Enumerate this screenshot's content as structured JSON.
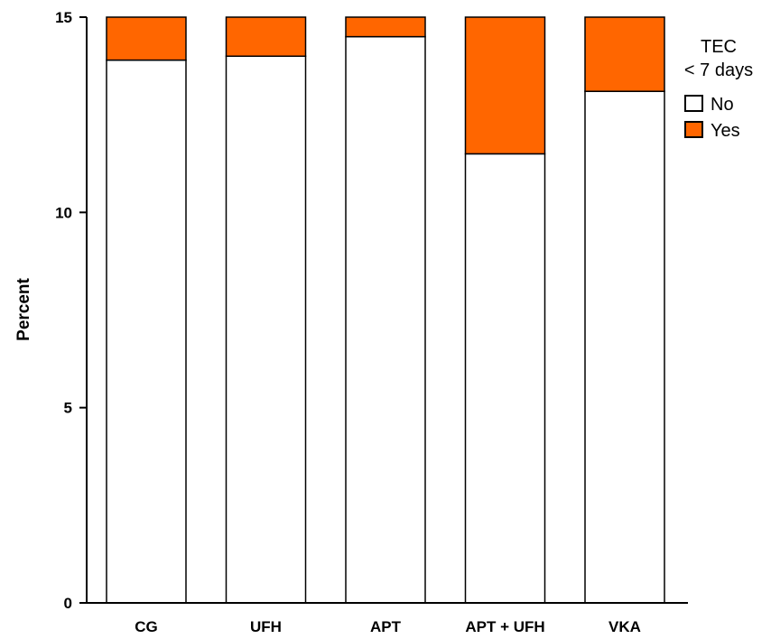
{
  "chart_data": {
    "type": "bar",
    "stacked": true,
    "categories": [
      "CG",
      "UFH",
      "APT",
      "APT + UFH",
      "VKA"
    ],
    "series": [
      {
        "name": "No",
        "color": "#ffffff",
        "values": [
          13.9,
          14.0,
          14.5,
          11.5,
          13.1
        ]
      },
      {
        "name": "Yes",
        "color": "#ff6600",
        "values": [
          1.1,
          1.0,
          0.5,
          3.5,
          1.9
        ]
      }
    ],
    "ylabel": "Percent",
    "xlabel": "",
    "ylim": [
      0,
      15
    ],
    "yticks": [
      "0",
      "5",
      "10",
      "15"
    ],
    "legend": {
      "title_line1": "TEC",
      "title_line2": "< 7 days",
      "placement": "top-right"
    },
    "grid": false
  }
}
